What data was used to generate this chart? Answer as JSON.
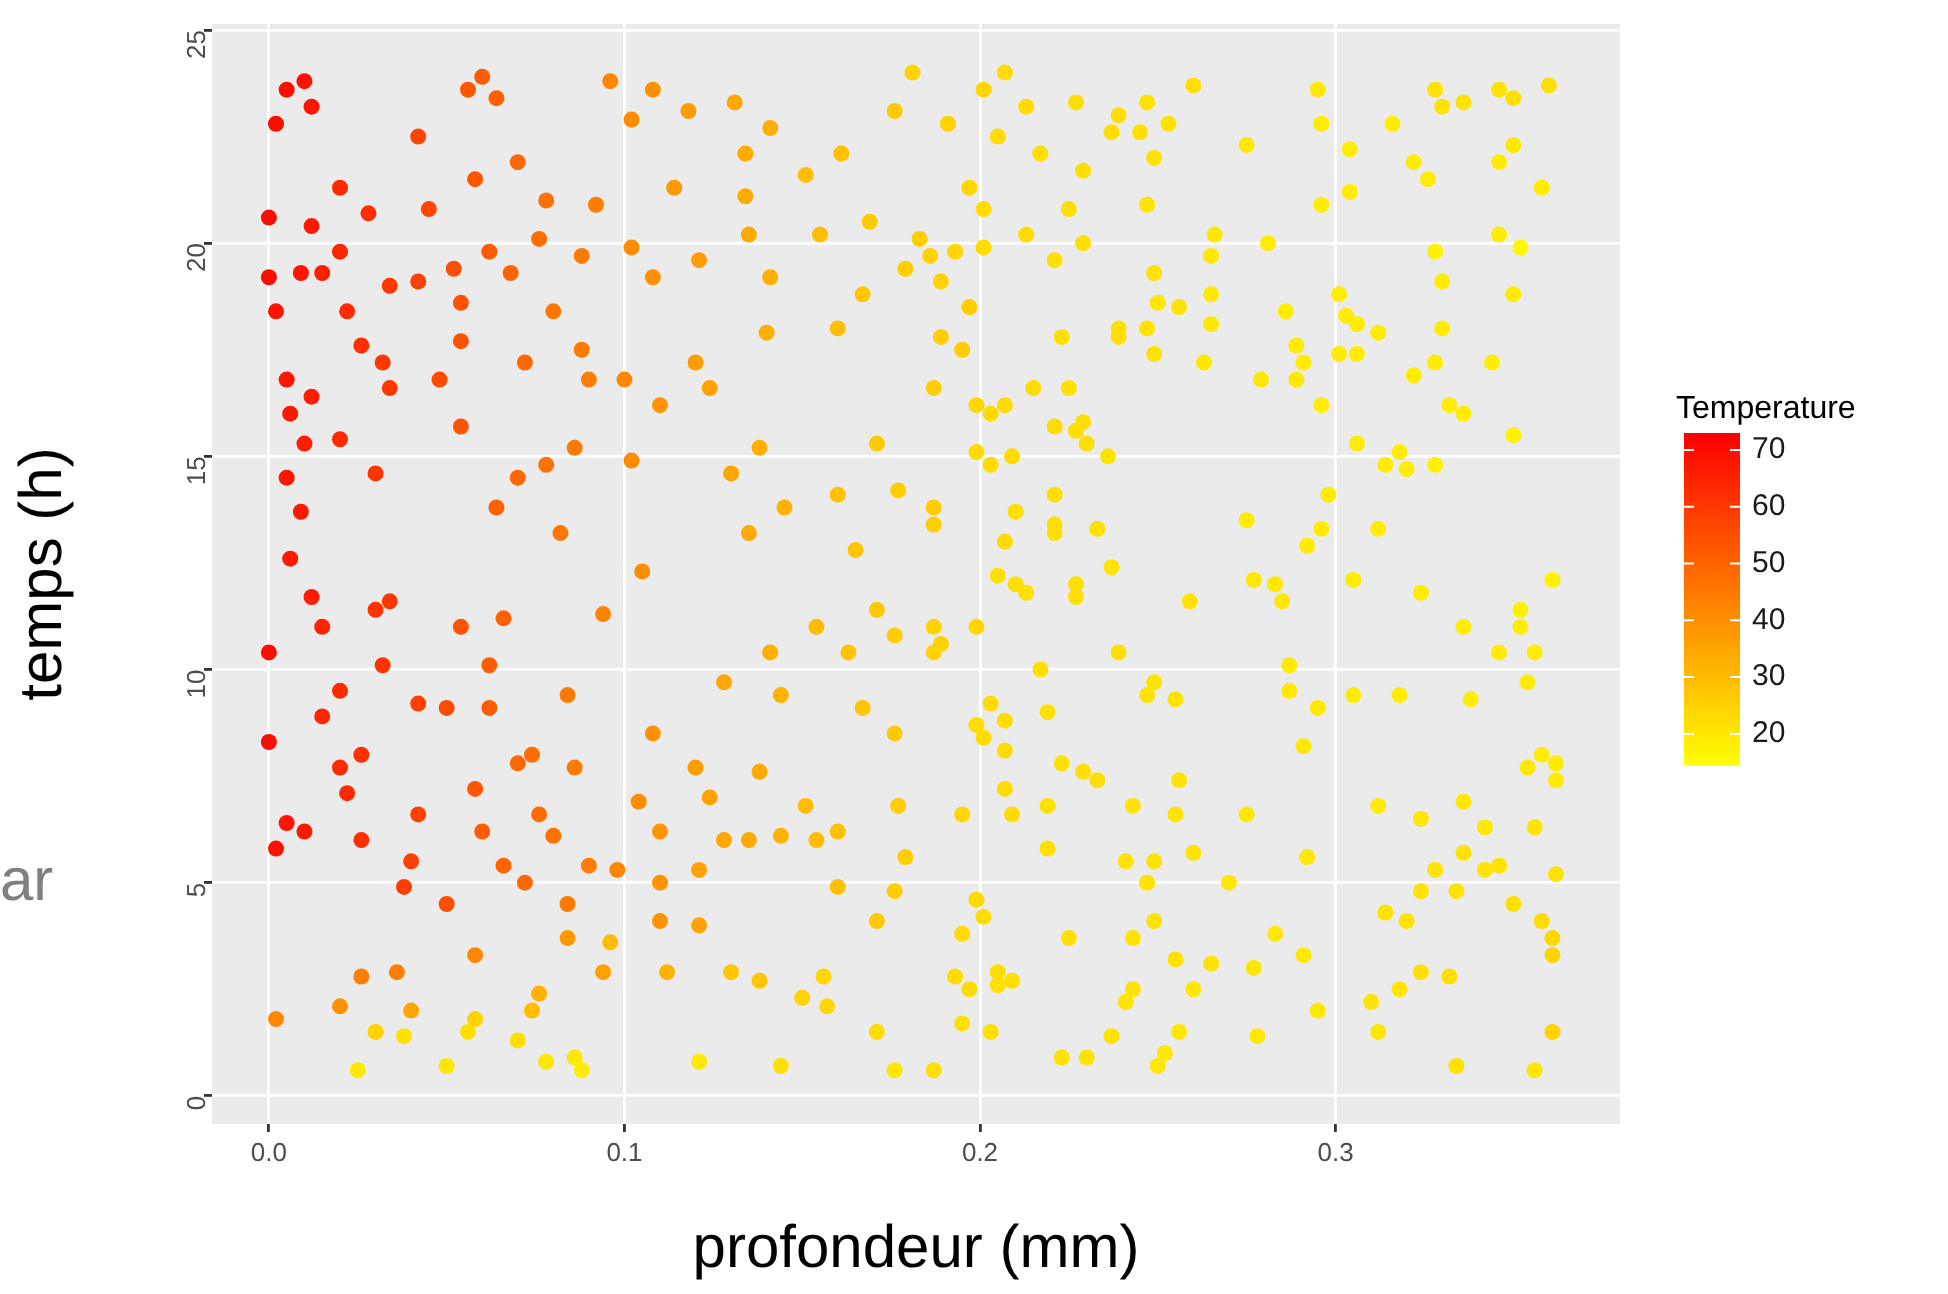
{
  "chart_data": {
    "type": "scatter",
    "xlabel": "profondeur (mm)",
    "ylabel": "temps (h)",
    "clabel": "Temperature",
    "marker": "circle",
    "grid": true,
    "xlim": [
      -0.016,
      0.38
    ],
    "ylim": [
      -0.66,
      25.14
    ],
    "xticks": [
      {
        "value": 0,
        "label": "0.0"
      },
      {
        "value": 0.1,
        "label": "0.1"
      },
      {
        "value": 0.2,
        "label": "0.2"
      },
      {
        "value": 0.3,
        "label": "0.3"
      }
    ],
    "yticks": [
      0,
      5,
      10,
      15,
      20,
      25
    ],
    "clim": [
      14.7,
      72.8
    ],
    "cticks": [
      20,
      30,
      40,
      50,
      60,
      70
    ],
    "annotations": [
      "ar"
    ],
    "x": [
      0.005,
      0.01,
      0.012,
      0.002,
      0.042,
      0.056,
      0.06,
      0.064,
      0.07,
      0.096,
      0.102,
      0.108,
      0.118,
      0.131,
      0.141,
      0.134,
      0.151,
      0.161,
      0.176,
      0.181,
      0.02,
      0.0,
      0.012,
      0.028,
      0.045,
      0.058,
      0.078,
      0.092,
      0.062,
      0.076,
      0.088,
      0.102,
      0.114,
      0.134,
      0.135,
      0.155,
      0.169,
      0.0,
      0.009,
      0.015,
      0.02,
      0.002,
      0.022,
      0.034,
      0.042,
      0.052,
      0.054,
      0.068,
      0.08,
      0.108,
      0.121,
      0.141,
      0.14,
      0.167,
      0.16,
      0.179,
      0.026,
      0.032,
      0.054,
      0.072,
      0.088,
      0.005,
      0.012,
      0.006,
      0.01,
      0.02,
      0.034,
      0.048,
      0.054,
      0.03,
      0.078,
      0.086,
      0.09,
      0.1,
      0.12,
      0.124,
      0.11,
      0.138,
      0.07,
      0.102,
      0.13,
      0.145,
      0.16,
      0.171,
      0.177,
      0.005,
      0.009,
      0.006,
      0.064,
      0.082,
      0.135,
      0.165,
      0.012,
      0.015,
      0.03,
      0.034,
      0.0,
      0.032,
      0.02,
      0.015,
      0.042,
      0.05,
      0.054,
      0.066,
      0.062,
      0.062,
      0.084,
      0.094,
      0.105,
      0.0,
      0.02,
      0.026,
      0.022,
      0.005,
      0.01,
      0.002,
      0.026,
      0.042,
      0.04,
      0.038,
      0.058,
      0.07,
      0.074,
      0.086,
      0.06,
      0.076,
      0.08,
      0.066,
      0.072,
      0.09,
      0.098,
      0.05,
      0.084,
      0.108,
      0.12,
      0.124,
      0.138,
      0.104,
      0.11,
      0.128,
      0.135,
      0.144,
      0.121,
      0.11,
      0.11,
      0.121,
      0.151,
      0.154,
      0.16,
      0.16,
      0.176,
      0.179,
      0.177,
      0.171,
      0.128,
      0.141,
      0.144,
      0.154,
      0.163,
      0.167,
      0.176,
      0.171,
      0.176,
      0.002,
      0.02,
      0.026,
      0.036,
      0.04,
      0.03,
      0.025,
      0.038,
      0.05,
      0.058,
      0.058,
      0.056,
      0.076,
      0.074,
      0.07,
      0.078,
      0.086,
      0.088,
      0.084,
      0.096,
      0.094,
      0.112,
      0.13,
      0.138,
      0.121,
      0.144,
      0.15,
      0.156,
      0.157,
      0.171,
      0.176,
      0.201,
      0.207,
      0.191,
      0.213,
      0.227,
      0.205,
      0.217,
      0.229,
      0.239,
      0.237,
      0.245,
      0.247,
      0.253,
      0.249,
      0.26,
      0.275,
      0.295,
      0.296,
      0.304,
      0.316,
      0.322,
      0.328,
      0.33,
      0.336,
      0.346,
      0.35,
      0.36,
      0.35,
      0.346,
      0.358,
      0.326,
      0.304,
      0.296,
      0.197,
      0.201,
      0.225,
      0.247,
      0.183,
      0.186,
      0.193,
      0.201,
      0.213,
      0.221,
      0.229,
      0.189,
      0.197,
      0.249,
      0.25,
      0.256,
      0.265,
      0.265,
      0.266,
      0.265,
      0.281,
      0.286,
      0.289,
      0.291,
      0.301,
      0.303,
      0.306,
      0.312,
      0.301,
      0.306,
      0.322,
      0.328,
      0.33,
      0.33,
      0.328,
      0.346,
      0.352,
      0.35,
      0.344,
      0.189,
      0.195,
      0.223,
      0.239,
      0.239,
      0.247,
      0.249,
      0.263,
      0.279,
      0.289,
      0.187,
      0.199,
      0.203,
      0.207,
      0.215,
      0.225,
      0.221,
      0.227,
      0.229,
      0.23,
      0.199,
      0.203,
      0.209,
      0.236,
      0.296,
      0.306,
      0.314,
      0.318,
      0.32,
      0.328,
      0.332,
      0.336,
      0.35,
      0.187,
      0.187,
      0.21,
      0.221,
      0.221,
      0.221,
      0.233,
      0.207,
      0.275,
      0.298,
      0.296,
      0.292,
      0.312,
      0.205,
      0.21,
      0.213,
      0.227,
      0.227,
      0.237,
      0.187,
      0.199,
      0.189,
      0.187,
      0.217,
      0.239,
      0.259,
      0.277,
      0.283,
      0.285,
      0.287,
      0.287,
      0.295,
      0.305,
      0.324,
      0.336,
      0.346,
      0.352,
      0.352,
      0.361,
      0.356,
      0.354,
      0.305,
      0.318,
      0.338,
      0.247,
      0.249,
      0.255,
      0.203,
      0.207,
      0.219,
      0.199,
      0.201,
      0.207,
      0.207,
      0.223,
      0.229,
      0.233,
      0.219,
      0.209,
      0.195,
      0.219,
      0.243,
      0.256,
      0.255,
      0.275,
      0.291,
      0.292,
      0.26,
      0.241,
      0.249,
      0.247,
      0.27,
      0.312,
      0.324,
      0.336,
      0.342,
      0.336,
      0.328,
      0.324,
      0.334,
      0.342,
      0.346,
      0.356,
      0.362,
      0.354,
      0.358,
      0.362,
      0.362,
      0.35,
      0.358,
      0.361,
      0.361,
      0.361,
      0.356,
      0.334,
      0.332,
      0.324,
      0.318,
      0.31,
      0.312,
      0.314,
      0.32,
      0.199,
      0.201,
      0.195,
      0.193,
      0.197,
      0.205,
      0.205,
      0.209,
      0.195,
      0.203,
      0.187,
      0.225,
      0.243,
      0.249,
      0.255,
      0.265,
      0.277,
      0.283,
      0.291,
      0.243,
      0.241,
      0.26,
      0.237,
      0.256,
      0.278,
      0.295,
      0.223,
      0.23,
      0.252,
      0.25
    ],
    "values": [
      23.6,
      23.8,
      23.2,
      22.8,
      22.5,
      23.6,
      23.9,
      23.4,
      21.9,
      23.8,
      22.9,
      23.6,
      23.1,
      23.3,
      22.7,
      22.1,
      21.6,
      22.1,
      23.1,
      24.0,
      21.3,
      20.6,
      20.4,
      20.7,
      20.8,
      21.5,
      21.0,
      20.9,
      19.8,
      20.1,
      19.7,
      19.9,
      21.3,
      21.1,
      20.2,
      20.2,
      20.5,
      19.2,
      19.3,
      19.3,
      19.8,
      18.4,
      18.4,
      19.0,
      19.1,
      19.4,
      18.6,
      19.3,
      18.4,
      19.2,
      19.6,
      19.2,
      17.9,
      18.8,
      18.0,
      19.4,
      17.6,
      17.2,
      17.7,
      17.2,
      17.5,
      16.8,
      16.4,
      16.0,
      15.3,
      15.4,
      16.6,
      16.8,
      15.7,
      14.6,
      14.8,
      15.2,
      16.8,
      16.8,
      17.2,
      16.6,
      16.2,
      15.2,
      14.5,
      14.9,
      14.6,
      13.8,
      14.1,
      15.3,
      14.2,
      14.5,
      13.7,
      12.6,
      13.8,
      13.2,
      13.2,
      12.8,
      11.7,
      11.0,
      11.4,
      11.6,
      10.4,
      10.1,
      9.5,
      8.9,
      9.2,
      9.1,
      11.0,
      11.2,
      10.1,
      9.1,
      9.4,
      11.3,
      12.3,
      8.3,
      7.7,
      8.0,
      7.1,
      6.4,
      6.2,
      5.8,
      6.0,
      6.6,
      5.5,
      4.9,
      7.2,
      7.8,
      8.0,
      7.7,
      6.2,
      6.6,
      6.1,
      5.4,
      5.0,
      5.4,
      5.3,
      4.5,
      4.5,
      8.5,
      7.7,
      7.0,
      7.6,
      6.9,
      6.2,
      6.0,
      6.0,
      6.1,
      5.3,
      5.0,
      4.1,
      4.0,
      6.8,
      6.0,
      6.2,
      4.9,
      4.8,
      5.6,
      6.8,
      4.1,
      9.7,
      10.4,
      9.4,
      11.0,
      10.4,
      9.1,
      8.5,
      11.4,
      10.8,
      1.8,
      2.1,
      2.8,
      2.9,
      2.0,
      1.5,
      0.6,
      1.4,
      0.7,
      3.3,
      1.8,
      1.5,
      2.4,
      2.0,
      1.3,
      0.8,
      0.9,
      0.6,
      3.7,
      3.6,
      2.9,
      2.9,
      2.9,
      2.7,
      0.8,
      0.7,
      2.3,
      2.8,
      2.1,
      1.5,
      0.6,
      23.6,
      24.0,
      22.8,
      23.2,
      23.3,
      22.5,
      22.1,
      21.7,
      23.0,
      22.6,
      22.6,
      23.3,
      22.8,
      22.0,
      23.7,
      22.3,
      23.6,
      22.8,
      22.2,
      22.8,
      21.9,
      23.6,
      23.2,
      23.3,
      23.6,
      23.4,
      23.7,
      22.3,
      21.9,
      21.3,
      21.5,
      21.2,
      20.9,
      21.3,
      20.8,
      20.8,
      20.9,
      20.1,
      19.7,
      19.8,
      19.9,
      20.2,
      19.6,
      20.0,
      19.1,
      18.5,
      19.3,
      18.6,
      18.5,
      18.8,
      18.1,
      20.2,
      19.7,
      20.0,
      18.4,
      17.6,
      17.2,
      18.8,
      18.3,
      18.1,
      17.9,
      17.4,
      17.4,
      16.9,
      17.2,
      18.0,
      19.1,
      19.8,
      20.2,
      19.9,
      18.8,
      17.2,
      17.8,
      17.5,
      17.8,
      18.0,
      17.8,
      18.0,
      17.4,
      17.2,
      16.8,
      16.8,
      16.6,
      16.2,
      16.0,
      16.2,
      16.6,
      16.6,
      15.7,
      15.6,
      15.8,
      15.3,
      15.1,
      14.8,
      15.0,
      15.0,
      16.2,
      15.3,
      14.8,
      15.1,
      14.7,
      14.8,
      16.2,
      16.0,
      15.5,
      13.8,
      13.4,
      13.7,
      14.1,
      13.4,
      13.2,
      13.3,
      13.0,
      13.5,
      14.1,
      13.3,
      12.9,
      13.3,
      12.2,
      12.0,
      11.8,
      12.0,
      11.7,
      12.4,
      11.0,
      11.0,
      10.6,
      10.4,
      10.0,
      10.4,
      11.6,
      12.1,
      12.0,
      11.6,
      10.1,
      9.5,
      9.1,
      12.1,
      11.8,
      11.0,
      10.4,
      11.4,
      11.0,
      12.1,
      10.4,
      9.7,
      9.4,
      9.4,
      9.3,
      9.4,
      9.7,
      9.3,
      9.2,
      8.8,
      9.0,
      8.7,
      8.4,
      8.1,
      7.2,
      7.8,
      7.6,
      7.4,
      6.8,
      6.6,
      6.6,
      5.8,
      6.8,
      7.4,
      6.6,
      6.6,
      8.2,
      5.6,
      5.7,
      5.5,
      5.5,
      5.0,
      5.0,
      6.8,
      6.5,
      6.9,
      6.3,
      5.7,
      5.3,
      4.8,
      4.8,
      5.3,
      5.4,
      6.3,
      5.2,
      7.7,
      8.0,
      7.8,
      7.4,
      4.5,
      4.1,
      3.7,
      3.3,
      1.5,
      0.6,
      0.7,
      2.8,
      2.9,
      2.5,
      2.2,
      1.5,
      4.3,
      4.1,
      4.6,
      4.2,
      3.8,
      2.8,
      2.5,
      2.9,
      2.6,
      2.7,
      1.7,
      1.5,
      0.6,
      3.7,
      3.7,
      4.1,
      3.2,
      3.1,
      3.0,
      3.8,
      3.3,
      2.5,
      2.2,
      2.5,
      1.4,
      1.5,
      1.4,
      2.0,
      0.9,
      0.9,
      1.0,
      0.7
    ],
    "cvalues": [
      70,
      69,
      68,
      70,
      57,
      53,
      52,
      51,
      49,
      42,
      41,
      40,
      37,
      35,
      33,
      34,
      30,
      29,
      27,
      25,
      63,
      70,
      67,
      62,
      57,
      53,
      47,
      44,
      52,
      48,
      45,
      41,
      38,
      34,
      34,
      30,
      27,
      70,
      68,
      66,
      64,
      69,
      63,
      60,
      58,
      55,
      54,
      50,
      46,
      40,
      37,
      33,
      33,
      28,
      29,
      26,
      62,
      60,
      54,
      49,
      45,
      68,
      66,
      67,
      66,
      63,
      60,
      56,
      54,
      61,
      47,
      45,
      44,
      42,
      37,
      36,
      39,
      33,
      49,
      41,
      35,
      32,
      29,
      27,
      26,
      68,
      67,
      67,
      51,
      46,
      34,
      28,
      66,
      65,
      61,
      60,
      70,
      61,
      63,
      64,
      58,
      56,
      54,
      51,
      52,
      52,
      45,
      43,
      41,
      70,
      63,
      62,
      63,
      68,
      67,
      69,
      62,
      58,
      58,
      59,
      53,
      49,
      48,
      45,
      52,
      48,
      47,
      50,
      49,
      44,
      42,
      55,
      45,
      40,
      37,
      36,
      34,
      41,
      39,
      35,
      34,
      32,
      36,
      39,
      39,
      36,
      30,
      30,
      29,
      29,
      26,
      26,
      26,
      27,
      35,
      33,
      32,
      30,
      28,
      28,
      27,
      27,
      26,
      42,
      40,
      44,
      44,
      35,
      25,
      20,
      22,
      20,
      42,
      25,
      22,
      32,
      30,
      22,
      20,
      20,
      19,
      38,
      30,
      36,
      32,
      28,
      28,
      20,
      22,
      25,
      24,
      24,
      23,
      20,
      24,
      23,
      25,
      23,
      22,
      23,
      22,
      22,
      22,
      22,
      22,
      21,
      21,
      21,
      22,
      20,
      20,
      19,
      19,
      19,
      19,
      21,
      21,
      21,
      21,
      22,
      22,
      20,
      19,
      19,
      19,
      19,
      19,
      24,
      23,
      22,
      21,
      26,
      25,
      24,
      23,
      23,
      22,
      22,
      25,
      26,
      21,
      20,
      21,
      20,
      20,
      20,
      20,
      19,
      19,
      19,
      19,
      19,
      19,
      19,
      19,
      19,
      19,
      19,
      19,
      19,
      19,
      18,
      19,
      17,
      19,
      19,
      26,
      26,
      22,
      22,
      22,
      21,
      21,
      20,
      20,
      20,
      26,
      24,
      23,
      23,
      23,
      22,
      23,
      22,
      22,
      22,
      23,
      23,
      23,
      21,
      19,
      19,
      19,
      19,
      19,
      18,
      19,
      19,
      18,
      26,
      26,
      22,
      22,
      22,
      22,
      22,
      23,
      19,
      19,
      19,
      19,
      19,
      22,
      22,
      22,
      22,
      22,
      21,
      25,
      24,
      25,
      25,
      22,
      22,
      21,
      20,
      20,
      20,
      19,
      20,
      20,
      19,
      19,
      19,
      19,
      18,
      19,
      18,
      19,
      19,
      19,
      19,
      19,
      21,
      21,
      21,
      23,
      23,
      22,
      23,
      23,
      23,
      23,
      22,
      22,
      22,
      22,
      23,
      24,
      22,
      21,
      21,
      21,
      20,
      20,
      20,
      21,
      21,
      21,
      21,
      20,
      19,
      20,
      20,
      20,
      21,
      21,
      21,
      21,
      21,
      21,
      21,
      21,
      20,
      19,
      19,
      19,
      22,
      23,
      24,
      25,
      25,
      20,
      21,
      22,
      22,
      21,
      21,
      20,
      21,
      21,
      23,
      23,
      23,
      23,
      23,
      23,
      22,
      22,
      22,
      22,
      22,
      22,
      21,
      21,
      21,
      21,
      20,
      20,
      20,
      21,
      21,
      20,
      21,
      20,
      20,
      20,
      21,
      21,
      20,
      20
    ]
  }
}
